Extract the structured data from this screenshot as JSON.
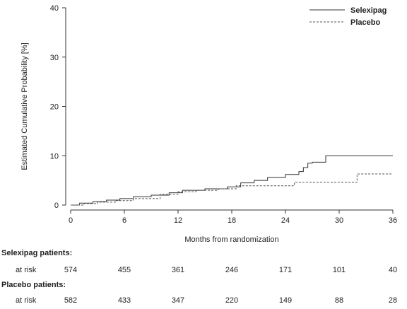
{
  "chart_data": {
    "type": "line",
    "xlabel": "Months from randomization",
    "ylabel": "Estimated Cumulative Probability [%]",
    "xlim": [
      0,
      36
    ],
    "ylim": [
      0,
      40
    ],
    "xticks": [
      0,
      6,
      12,
      18,
      24,
      30,
      36
    ],
    "yticks": [
      0,
      10,
      20,
      30,
      40
    ],
    "grid": false,
    "legend_position": "top-right",
    "series": [
      {
        "name": "Selexipag",
        "style": "solid",
        "color": "#333333",
        "x": [
          0,
          1,
          2.5,
          4,
          5.5,
          7,
          9,
          11,
          12.5,
          15,
          17.5,
          19,
          20.5,
          22,
          24,
          25.5,
          26,
          26.5,
          27,
          28.5,
          36
        ],
        "y": [
          0,
          0.4,
          0.7,
          1.0,
          1.3,
          1.7,
          2.0,
          2.5,
          3.0,
          3.3,
          3.7,
          4.5,
          5.0,
          5.6,
          6.2,
          6.8,
          7.6,
          8.5,
          8.7,
          10.0,
          10.0
        ]
      },
      {
        "name": "Placebo",
        "style": "dashed",
        "color": "#555555",
        "x": [
          0,
          1.5,
          3,
          5,
          7,
          10,
          12,
          14,
          16.5,
          18.5,
          25,
          32,
          36
        ],
        "y": [
          0,
          0.3,
          0.6,
          0.9,
          1.3,
          2.2,
          2.7,
          3.0,
          3.3,
          3.9,
          4.6,
          6.3,
          6.3
        ]
      }
    ]
  },
  "risk_table": {
    "groups": [
      {
        "title": "Selexipag patients:",
        "row_label": "at risk",
        "values": [
          "574",
          "455",
          "361",
          "246",
          "171",
          "101",
          "40"
        ]
      },
      {
        "title": "Placebo patients:",
        "row_label": "at risk",
        "values": [
          "582",
          "433",
          "347",
          "220",
          "149",
          "88",
          "28"
        ]
      }
    ]
  }
}
